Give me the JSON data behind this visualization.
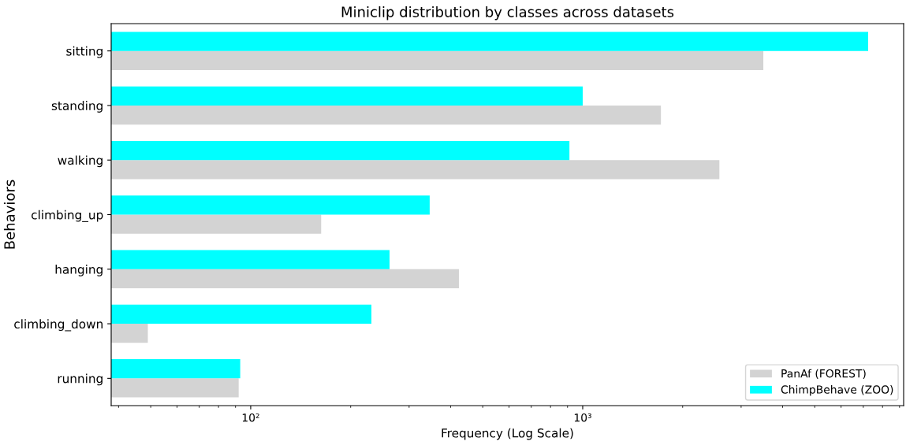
{
  "chart_data": {
    "type": "bar",
    "orientation": "horizontal",
    "title": "Miniclip distribution by classes across datasets",
    "xlabel": "Frequency (Log Scale)",
    "ylabel": "Behaviors",
    "categories": [
      "sitting",
      "standing",
      "walking",
      "climbing_up",
      "hanging",
      "climbing_down",
      "running"
    ],
    "series": [
      {
        "name": "PanAf (FOREST)",
        "color": "#d3d3d3",
        "values": [
          3500,
          1720,
          2580,
          163,
          424,
          49,
          92
        ]
      },
      {
        "name": "ChimpBehave (ZOO)",
        "color": "#00ffff",
        "values": [
          7240,
          1000,
          912,
          346,
          262,
          231,
          93
        ]
      }
    ],
    "log": "x",
    "xlim": [
      38,
      9260
    ],
    "xticks": [
      {
        "value": 100,
        "label": "10²"
      },
      {
        "value": 1000,
        "label": "10³"
      }
    ],
    "grid": false,
    "legend": "bottom right"
  }
}
